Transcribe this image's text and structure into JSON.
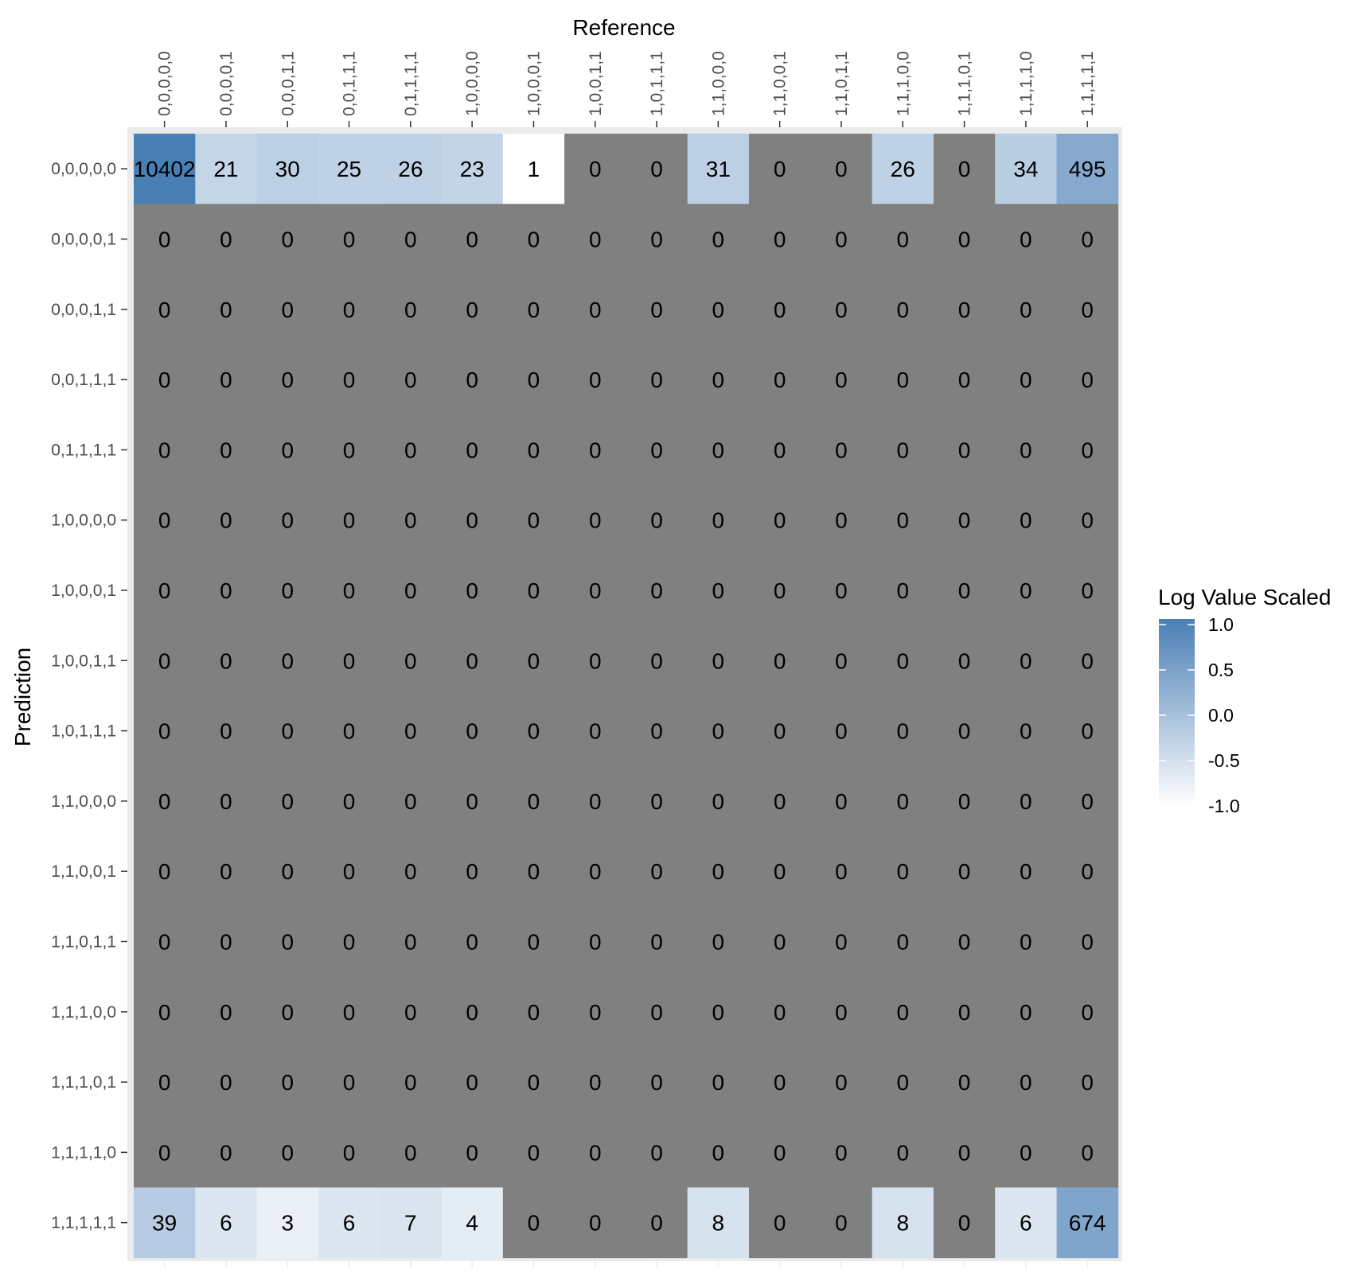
{
  "chart_data": {
    "type": "heatmap",
    "xlabel": "Reference",
    "ylabel": "Prediction",
    "x_position": "top",
    "categories_x": [
      "0,0,0,0,0",
      "0,0,0,0,1",
      "0,0,0,1,1",
      "0,0,1,1,1",
      "0,1,1,1,1",
      "1,0,0,0,0",
      "1,0,0,0,1",
      "1,0,0,1,1",
      "1,0,1,1,1",
      "1,1,0,0,0",
      "1,1,0,0,1",
      "1,1,0,1,1",
      "1,1,1,0,0",
      "1,1,1,0,1",
      "1,1,1,1,0",
      "1,1,1,1,1"
    ],
    "categories_y": [
      "0,0,0,0,0",
      "0,0,0,0,1",
      "0,0,0,1,1",
      "0,0,1,1,1",
      "0,1,1,1,1",
      "1,0,0,0,0",
      "1,0,0,0,1",
      "1,0,0,1,1",
      "1,0,1,1,1",
      "1,1,0,0,0",
      "1,1,0,0,1",
      "1,1,0,1,1",
      "1,1,1,0,0",
      "1,1,1,0,1",
      "1,1,1,1,0",
      "1,1,1,1,1"
    ],
    "values": [
      [
        10402,
        21,
        30,
        25,
        26,
        23,
        1,
        0,
        0,
        31,
        0,
        0,
        26,
        0,
        34,
        495
      ],
      [
        0,
        0,
        0,
        0,
        0,
        0,
        0,
        0,
        0,
        0,
        0,
        0,
        0,
        0,
        0,
        0
      ],
      [
        0,
        0,
        0,
        0,
        0,
        0,
        0,
        0,
        0,
        0,
        0,
        0,
        0,
        0,
        0,
        0
      ],
      [
        0,
        0,
        0,
        0,
        0,
        0,
        0,
        0,
        0,
        0,
        0,
        0,
        0,
        0,
        0,
        0
      ],
      [
        0,
        0,
        0,
        0,
        0,
        0,
        0,
        0,
        0,
        0,
        0,
        0,
        0,
        0,
        0,
        0
      ],
      [
        0,
        0,
        0,
        0,
        0,
        0,
        0,
        0,
        0,
        0,
        0,
        0,
        0,
        0,
        0,
        0
      ],
      [
        0,
        0,
        0,
        0,
        0,
        0,
        0,
        0,
        0,
        0,
        0,
        0,
        0,
        0,
        0,
        0
      ],
      [
        0,
        0,
        0,
        0,
        0,
        0,
        0,
        0,
        0,
        0,
        0,
        0,
        0,
        0,
        0,
        0
      ],
      [
        0,
        0,
        0,
        0,
        0,
        0,
        0,
        0,
        0,
        0,
        0,
        0,
        0,
        0,
        0,
        0
      ],
      [
        0,
        0,
        0,
        0,
        0,
        0,
        0,
        0,
        0,
        0,
        0,
        0,
        0,
        0,
        0,
        0
      ],
      [
        0,
        0,
        0,
        0,
        0,
        0,
        0,
        0,
        0,
        0,
        0,
        0,
        0,
        0,
        0,
        0
      ],
      [
        0,
        0,
        0,
        0,
        0,
        0,
        0,
        0,
        0,
        0,
        0,
        0,
        0,
        0,
        0,
        0
      ],
      [
        0,
        0,
        0,
        0,
        0,
        0,
        0,
        0,
        0,
        0,
        0,
        0,
        0,
        0,
        0,
        0
      ],
      [
        0,
        0,
        0,
        0,
        0,
        0,
        0,
        0,
        0,
        0,
        0,
        0,
        0,
        0,
        0,
        0
      ],
      [
        0,
        0,
        0,
        0,
        0,
        0,
        0,
        0,
        0,
        0,
        0,
        0,
        0,
        0,
        0,
        0
      ],
      [
        39,
        6,
        3,
        6,
        7,
        4,
        0,
        0,
        0,
        8,
        0,
        0,
        8,
        0,
        6,
        674
      ]
    ],
    "colorbar": {
      "title": "Log Value Scaled",
      "ticks": [
        "1.0",
        "0.5",
        "0.0",
        "-0.5",
        "-1.0"
      ],
      "range": [
        -1.0,
        1.0
      ],
      "low_color": "#ffffff",
      "high_color": "#4a7fb5",
      "zero_count_color": "#808080"
    },
    "panel_background": "#ebebeb",
    "text_color": "#000000"
  }
}
